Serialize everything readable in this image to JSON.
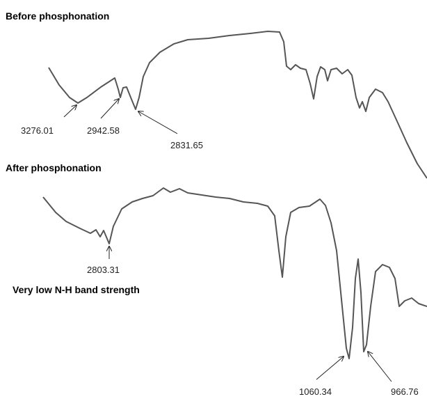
{
  "panels": [
    {
      "title": "Before phosphonation",
      "annotations": [
        "3276.01",
        "2942.58",
        "2831.65"
      ]
    },
    {
      "title": "After phosphonation",
      "annotations": [
        "2803.31",
        "1060.34",
        "966.76"
      ],
      "note": "Very low N-H band strength"
    }
  ]
}
